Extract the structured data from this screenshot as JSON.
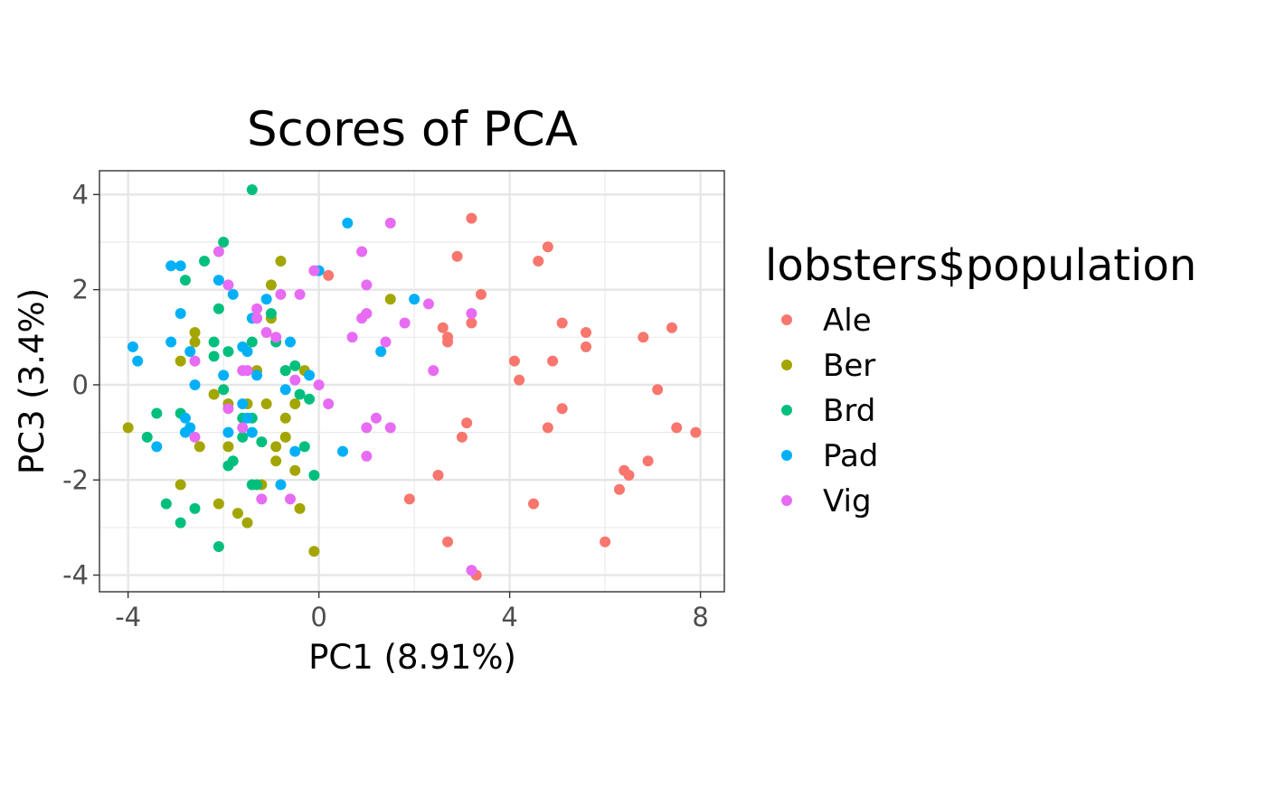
{
  "chart_data": {
    "type": "scatter",
    "title": "Scores of PCA",
    "xlabel": "PC1 (8.91%)",
    "ylabel": "PC3 (3.4%)",
    "xlim": [
      -4.6,
      8.5
    ],
    "ylim": [
      -4.35,
      4.5
    ],
    "x_ticks": [
      -4,
      0,
      4,
      8
    ],
    "y_ticks": [
      -4,
      -2,
      0,
      2,
      4
    ],
    "x_tick_labels": [
      "-4",
      "0",
      "4",
      "8"
    ],
    "y_tick_labels": [
      "-4",
      "-2",
      "0",
      "2",
      "4"
    ],
    "grid": true,
    "legend": {
      "title": "lobsters$population",
      "position": "right"
    },
    "series": [
      {
        "name": "Ale",
        "color": "#F8766D",
        "points": [
          [
            0.2,
            2.3
          ],
          [
            2.6,
            1.2
          ],
          [
            2.7,
            1.0
          ],
          [
            2.7,
            0.9
          ],
          [
            2.9,
            2.7
          ],
          [
            3.2,
            1.3
          ],
          [
            3.4,
            1.9
          ],
          [
            3.2,
            3.5
          ],
          [
            4.1,
            0.5
          ],
          [
            4.2,
            0.1
          ],
          [
            4.6,
            2.6
          ],
          [
            4.8,
            2.9
          ],
          [
            5.1,
            1.3
          ],
          [
            4.9,
            0.5
          ],
          [
            5.6,
            1.1
          ],
          [
            5.6,
            0.8
          ],
          [
            6.8,
            1.0
          ],
          [
            7.4,
            1.2
          ],
          [
            7.1,
            -0.1
          ],
          [
            7.5,
            -0.9
          ],
          [
            7.9,
            -1.0
          ],
          [
            6.9,
            -1.6
          ],
          [
            6.4,
            -1.8
          ],
          [
            6.5,
            -1.9
          ],
          [
            6.3,
            -2.2
          ],
          [
            6.0,
            -3.3
          ],
          [
            5.1,
            -0.5
          ],
          [
            4.8,
            -0.9
          ],
          [
            4.5,
            -2.5
          ],
          [
            3.1,
            -0.8
          ],
          [
            3.0,
            -1.1
          ],
          [
            2.5,
            -1.9
          ],
          [
            1.9,
            -2.4
          ],
          [
            2.7,
            -3.3
          ],
          [
            3.3,
            -4.0
          ]
        ]
      },
      {
        "name": "Ber",
        "color": "#A3A500",
        "points": [
          [
            -4.0,
            -0.9
          ],
          [
            -2.9,
            0.5
          ],
          [
            -2.6,
            1.1
          ],
          [
            -2.6,
            0.9
          ],
          [
            -2.2,
            -0.2
          ],
          [
            -1.9,
            -0.4
          ],
          [
            -1.5,
            -0.4
          ],
          [
            -1.3,
            0.3
          ],
          [
            -1.1,
            -0.4
          ],
          [
            -1.0,
            2.1
          ],
          [
            -1.0,
            1.4
          ],
          [
            -0.8,
            2.6
          ],
          [
            -0.7,
            0.3
          ],
          [
            -0.3,
            0.3
          ],
          [
            -0.5,
            -0.4
          ],
          [
            -0.7,
            -0.7
          ],
          [
            -0.7,
            -1.1
          ],
          [
            -0.5,
            -1.8
          ],
          [
            -0.9,
            -1.6
          ],
          [
            -0.9,
            -1.3
          ],
          [
            -1.2,
            -2.1
          ],
          [
            -1.5,
            -2.9
          ],
          [
            -1.7,
            -2.7
          ],
          [
            -2.1,
            -2.5
          ],
          [
            -2.5,
            -1.3
          ],
          [
            -2.9,
            -2.1
          ],
          [
            -1.9,
            -1.3
          ],
          [
            -0.4,
            -2.6
          ],
          [
            -0.1,
            -3.5
          ],
          [
            1.5,
            1.8
          ]
        ]
      },
      {
        "name": "Brd",
        "color": "#00BF7D",
        "points": [
          [
            -1.4,
            4.1
          ],
          [
            -2.0,
            3.0
          ],
          [
            -2.4,
            2.6
          ],
          [
            -2.8,
            2.2
          ],
          [
            -2.1,
            1.6
          ],
          [
            -2.2,
            0.9
          ],
          [
            -2.2,
            0.6
          ],
          [
            -1.9,
            0.7
          ],
          [
            -1.4,
            0.9
          ],
          [
            -1.0,
            1.5
          ],
          [
            -0.9,
            0.9
          ],
          [
            -0.7,
            0.3
          ],
          [
            -0.5,
            0.4
          ],
          [
            -0.4,
            -0.2
          ],
          [
            -0.2,
            -0.3
          ],
          [
            -2.0,
            -0.1
          ],
          [
            -1.6,
            -0.7
          ],
          [
            -1.4,
            -0.7
          ],
          [
            -1.2,
            -1.2
          ],
          [
            -1.6,
            -1.1
          ],
          [
            -1.9,
            -1.7
          ],
          [
            -1.8,
            -1.6
          ],
          [
            -1.4,
            -2.1
          ],
          [
            -1.3,
            -2.1
          ],
          [
            -2.6,
            -2.6
          ],
          [
            -2.9,
            -2.9
          ],
          [
            -3.2,
            -2.5
          ],
          [
            -3.6,
            -1.1
          ],
          [
            -3.4,
            -0.6
          ],
          [
            -2.9,
            -0.6
          ],
          [
            -2.1,
            -3.4
          ],
          [
            -0.3,
            -1.3
          ],
          [
            -0.1,
            -1.9
          ]
        ]
      },
      {
        "name": "Pad",
        "color": "#00B0F6",
        "points": [
          [
            -3.9,
            0.8
          ],
          [
            -3.8,
            0.5
          ],
          [
            -3.1,
            2.5
          ],
          [
            -2.9,
            2.5
          ],
          [
            -2.9,
            1.5
          ],
          [
            -3.1,
            0.9
          ],
          [
            -2.7,
            0.7
          ],
          [
            -2.1,
            2.2
          ],
          [
            -1.8,
            1.9
          ],
          [
            -1.6,
            0.8
          ],
          [
            -1.5,
            0.7
          ],
          [
            -1.4,
            1.4
          ],
          [
            -1.3,
            1.4
          ],
          [
            -1.1,
            1.8
          ],
          [
            -2.0,
            0.2
          ],
          [
            -2.6,
            0.0
          ],
          [
            -2.8,
            -0.7
          ],
          [
            -2.7,
            -0.9
          ],
          [
            -2.8,
            -1.0
          ],
          [
            -3.4,
            -1.3
          ],
          [
            -1.6,
            -0.4
          ],
          [
            -1.4,
            -1.0
          ],
          [
            -1.5,
            -0.7
          ],
          [
            -1.3,
            0.2
          ],
          [
            -0.6,
            0.9
          ],
          [
            -0.7,
            -0.1
          ],
          [
            -0.2,
            0.2
          ],
          [
            -0.5,
            -1.4
          ],
          [
            -0.8,
            -2.1
          ],
          [
            0.6,
            3.4
          ],
          [
            1.3,
            0.7
          ],
          [
            2.0,
            1.8
          ],
          [
            0.5,
            -1.4
          ],
          [
            0.0,
            2.4
          ],
          [
            -1.9,
            -1.0
          ]
        ]
      },
      {
        "name": "Vig",
        "color": "#E76BF3",
        "points": [
          [
            -2.1,
            2.8
          ],
          [
            -1.9,
            2.1
          ],
          [
            -1.3,
            1.6
          ],
          [
            -1.3,
            1.4
          ],
          [
            -0.8,
            1.9
          ],
          [
            -0.4,
            1.9
          ],
          [
            -1.1,
            1.1
          ],
          [
            -0.9,
            1.0
          ],
          [
            -1.6,
            0.3
          ],
          [
            -1.5,
            0.3
          ],
          [
            -2.6,
            0.5
          ],
          [
            -1.9,
            -0.5
          ],
          [
            -1.6,
            -0.9
          ],
          [
            -2.6,
            -1.1
          ],
          [
            -1.2,
            -2.4
          ],
          [
            -0.6,
            -2.4
          ],
          [
            -0.5,
            0.1
          ],
          [
            0.0,
            0.0
          ],
          [
            0.2,
            -0.4
          ],
          [
            0.9,
            2.8
          ],
          [
            1.0,
            2.1
          ],
          [
            1.0,
            1.5
          ],
          [
            0.9,
            1.4
          ],
          [
            0.7,
            1.0
          ],
          [
            1.4,
            0.9
          ],
          [
            1.5,
            3.4
          ],
          [
            1.8,
            1.3
          ],
          [
            2.3,
            1.7
          ],
          [
            2.4,
            0.3
          ],
          [
            3.2,
            1.5
          ],
          [
            1.2,
            -0.7
          ],
          [
            1.5,
            -0.9
          ],
          [
            1.0,
            -0.9
          ],
          [
            1.0,
            -1.5
          ],
          [
            3.2,
            -3.9
          ],
          [
            -0.1,
            2.4
          ]
        ]
      }
    ]
  }
}
